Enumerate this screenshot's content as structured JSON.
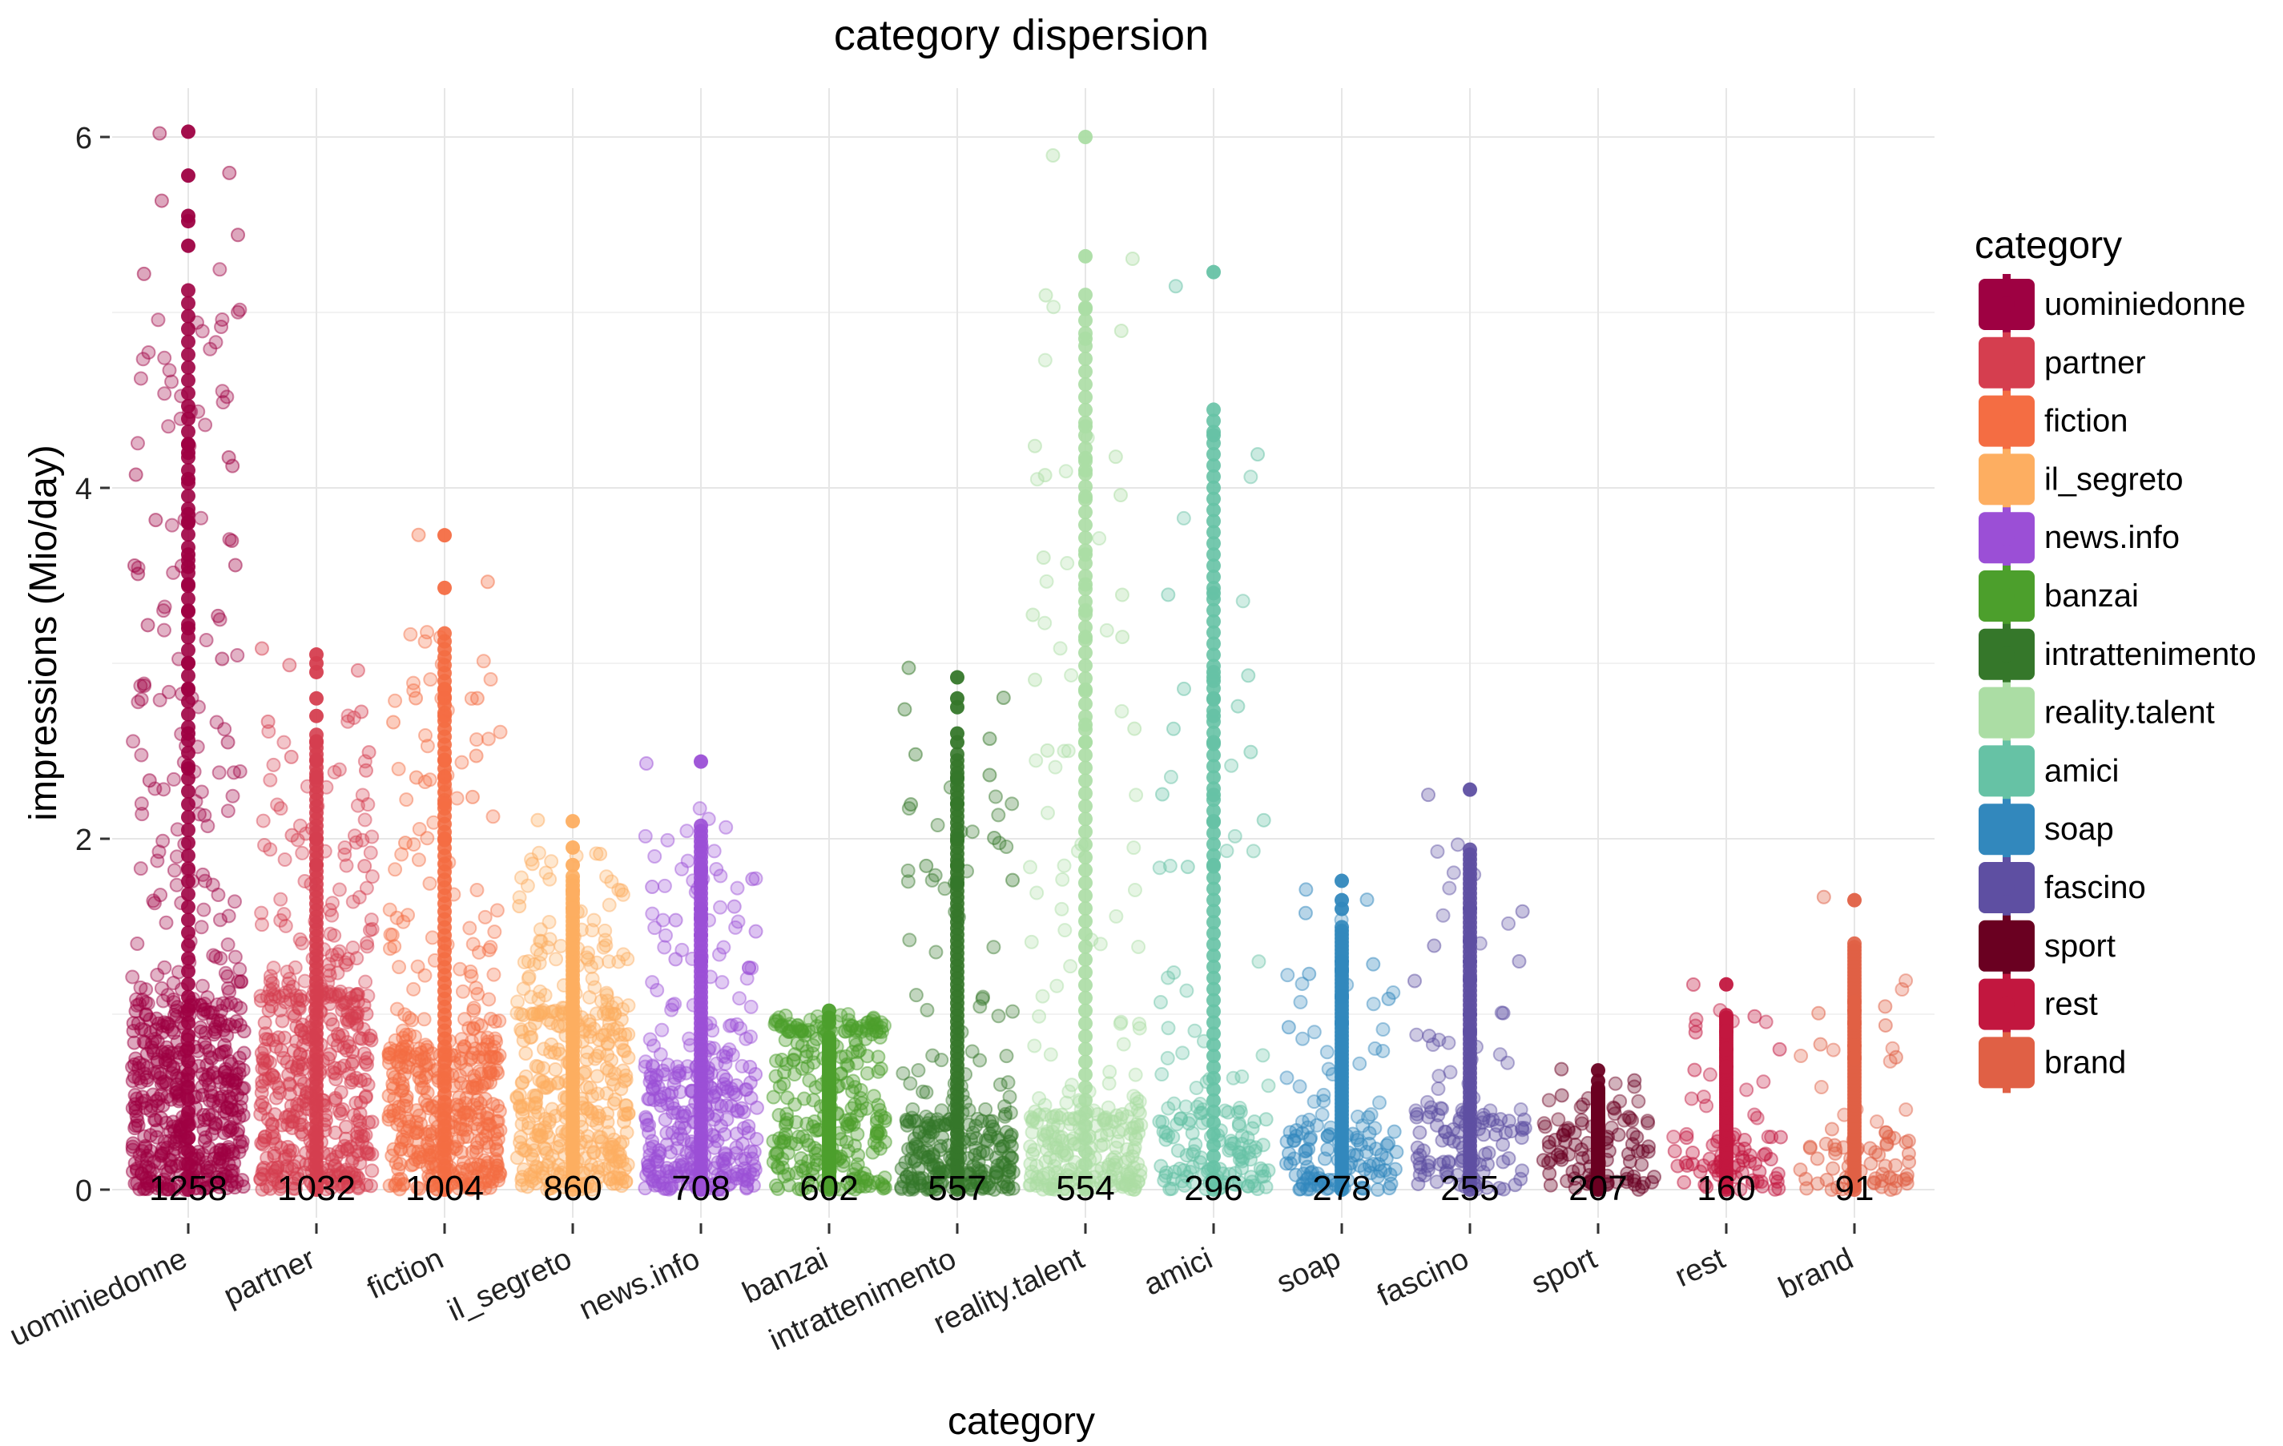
{
  "chart_data": {
    "type": "scatter",
    "title": "category dispersion",
    "xlabel": "category",
    "ylabel": "impressions (Mio/day)",
    "ylim": [
      -0.2,
      6.3
    ],
    "yticks": [
      0,
      2,
      4,
      6
    ],
    "grid": true,
    "legend": {
      "title": "category",
      "position": "right"
    },
    "categories": [
      "uominiedonne",
      "partner",
      "fiction",
      "il_segreto",
      "news.info",
      "banzai",
      "intrattenimento",
      "reality.talent",
      "amici",
      "soap",
      "fascino",
      "sport",
      "rest",
      "brand"
    ],
    "counts": [
      1258,
      1032,
      1004,
      860,
      708,
      602,
      557,
      554,
      296,
      278,
      255,
      207,
      160,
      91
    ],
    "colors": [
      "#9e0142",
      "#d53e4f",
      "#f46d43",
      "#fdae61",
      "#9b4fd6",
      "#4c9f2c",
      "#35772a",
      "#abdda4",
      "#66c2a5",
      "#3288bd",
      "#5e4fa2",
      "#6a0021",
      "#c2173f",
      "#e06045"
    ],
    "series": [
      {
        "name": "uominiedonne",
        "body_max": 1.05,
        "max": 6.03,
        "outliers": [
          6.03,
          5.78,
          5.55,
          5.52,
          5.38,
          4.25,
          4.2,
          4.05,
          3.85,
          3.8,
          3.62,
          3.55,
          3.45,
          3.3,
          3.2,
          3.0,
          2.85,
          2.6,
          2.4
        ]
      },
      {
        "name": "partner",
        "body_max": 1.1,
        "max": 3.05,
        "outliers": [
          3.05,
          3.0,
          2.95,
          2.8,
          2.7,
          2.55,
          2.45,
          2.35,
          2.0,
          1.85
        ]
      },
      {
        "name": "fiction",
        "body_max": 0.8,
        "max": 3.73,
        "outliers": [
          3.73,
          3.43,
          2.85,
          2.8,
          2.7,
          2.45,
          2.35,
          2.2,
          2.0
        ]
      },
      {
        "name": "il_segreto",
        "body_max": 1.0,
        "max": 2.1,
        "outliers": [
          2.1,
          1.95,
          1.85,
          1.7,
          1.6
        ]
      },
      {
        "name": "news.info",
        "body_max": 0.7,
        "max": 2.44,
        "outliers": [
          2.44,
          1.82,
          1.75,
          1.6,
          1.55,
          1.45,
          1.3
        ]
      },
      {
        "name": "banzai",
        "body_max": 0.9,
        "max": 1.02,
        "outliers": [
          1.02,
          0.98,
          0.95
        ]
      },
      {
        "name": "intrattenimento",
        "body_max": 0.4,
        "max": 2.92,
        "outliers": [
          2.92,
          2.8,
          2.75,
          2.6,
          2.55,
          2.35,
          2.2,
          2.0,
          1.85,
          1.75
        ]
      },
      {
        "name": "reality.talent",
        "body_max": 0.45,
        "max": 6.0,
        "outliers": [
          6.0,
          5.32,
          5.02,
          4.85,
          4.35,
          4.17,
          4.1,
          3.95,
          3.62,
          3.45,
          3.3,
          3.15,
          2.85,
          2.65,
          2.55
        ]
      },
      {
        "name": "amici",
        "body_max": 0.45,
        "max": 5.23,
        "outliers": [
          5.23,
          4.3,
          3.4,
          2.95,
          2.9,
          2.8,
          2.7,
          2.55,
          2.25,
          2.1,
          1.85
        ]
      },
      {
        "name": "soap",
        "body_max": 0.35,
        "max": 1.76,
        "outliers": [
          1.76,
          1.65,
          1.6,
          1.3,
          1.25,
          1.1,
          0.95
        ]
      },
      {
        "name": "fascino",
        "body_max": 0.45,
        "max": 2.28,
        "outliers": [
          2.28,
          1.6,
          1.42,
          1.3,
          1.2,
          1.0,
          0.9
        ]
      },
      {
        "name": "sport",
        "body_max": 0.35,
        "max": 0.68,
        "outliers": [
          0.68,
          0.62,
          0.55
        ]
      },
      {
        "name": "rest",
        "body_max": 0.3,
        "max": 1.17,
        "outliers": [
          1.17,
          0.98,
          0.9,
          0.8,
          0.7
        ]
      },
      {
        "name": "brand",
        "body_max": 0.35,
        "max": 1.65,
        "outliers": [
          1.65,
          1.07,
          1.02,
          0.95,
          0.82,
          0.75
        ]
      }
    ]
  }
}
